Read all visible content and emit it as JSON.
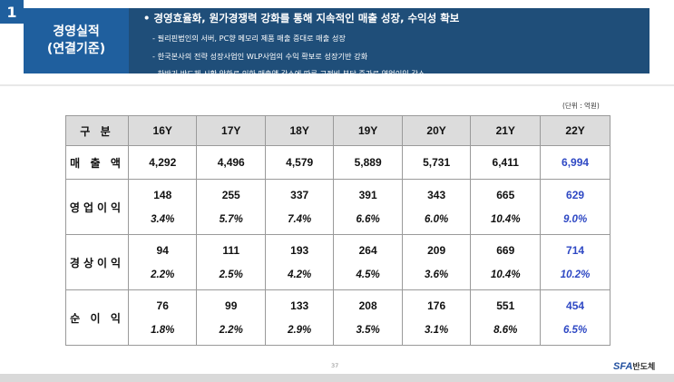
{
  "section": {
    "number": "1"
  },
  "title": {
    "line1": "경영실적",
    "line2": "(연결기준)"
  },
  "bullets": {
    "main": "경영효율화, 원가경쟁력 강화를 통해 지속적인 매출 성장, 수익성 확보",
    "subs": [
      "필리핀법인의 서버, PC향 메모리 제품 매출 증대로 매출 성장",
      "한국본사의 전략 성장사업인 WLP사업의 수익 확보로 성장기반 강화",
      "하반기 반도체 시황 악화로 인한 매출액 감소에 따른 고정비 부담 증가로 영업이익 감소"
    ]
  },
  "unit_label": "(단위 : 억원)",
  "table": {
    "header_label": "구 분",
    "years": [
      "16Y",
      "17Y",
      "18Y",
      "19Y",
      "20Y",
      "21Y",
      "22Y"
    ],
    "rows": [
      {
        "label": "매 출 액",
        "values": [
          "4,292",
          "4,496",
          "4,579",
          "5,889",
          "5,731",
          "6,411",
          "6,994"
        ]
      },
      {
        "label": "영업이익",
        "values": [
          "148",
          "255",
          "337",
          "391",
          "343",
          "665",
          "629"
        ],
        "pcts": [
          "3.4%",
          "5.7%",
          "7.4%",
          "6.6%",
          "6.0%",
          "10.4%",
          "9.0%"
        ]
      },
      {
        "label": "경상이익",
        "values": [
          "94",
          "111",
          "193",
          "264",
          "209",
          "669",
          "714"
        ],
        "pcts": [
          "2.2%",
          "2.5%",
          "4.2%",
          "4.5%",
          "3.6%",
          "10.4%",
          "10.2%"
        ]
      },
      {
        "label": "순 이 익",
        "values": [
          "76",
          "99",
          "133",
          "208",
          "176",
          "551",
          "454"
        ],
        "pcts": [
          "1.8%",
          "2.2%",
          "2.9%",
          "3.5%",
          "3.1%",
          "8.6%",
          "6.5%"
        ]
      }
    ]
  },
  "footer": {
    "page_number": "37",
    "logo_sfa": "SFA",
    "logo_kr": "반도체"
  },
  "colors": {
    "title_bg": "#1f5f9e",
    "bar_bg": "#1f4e79",
    "highlight": "#2f49c4"
  }
}
